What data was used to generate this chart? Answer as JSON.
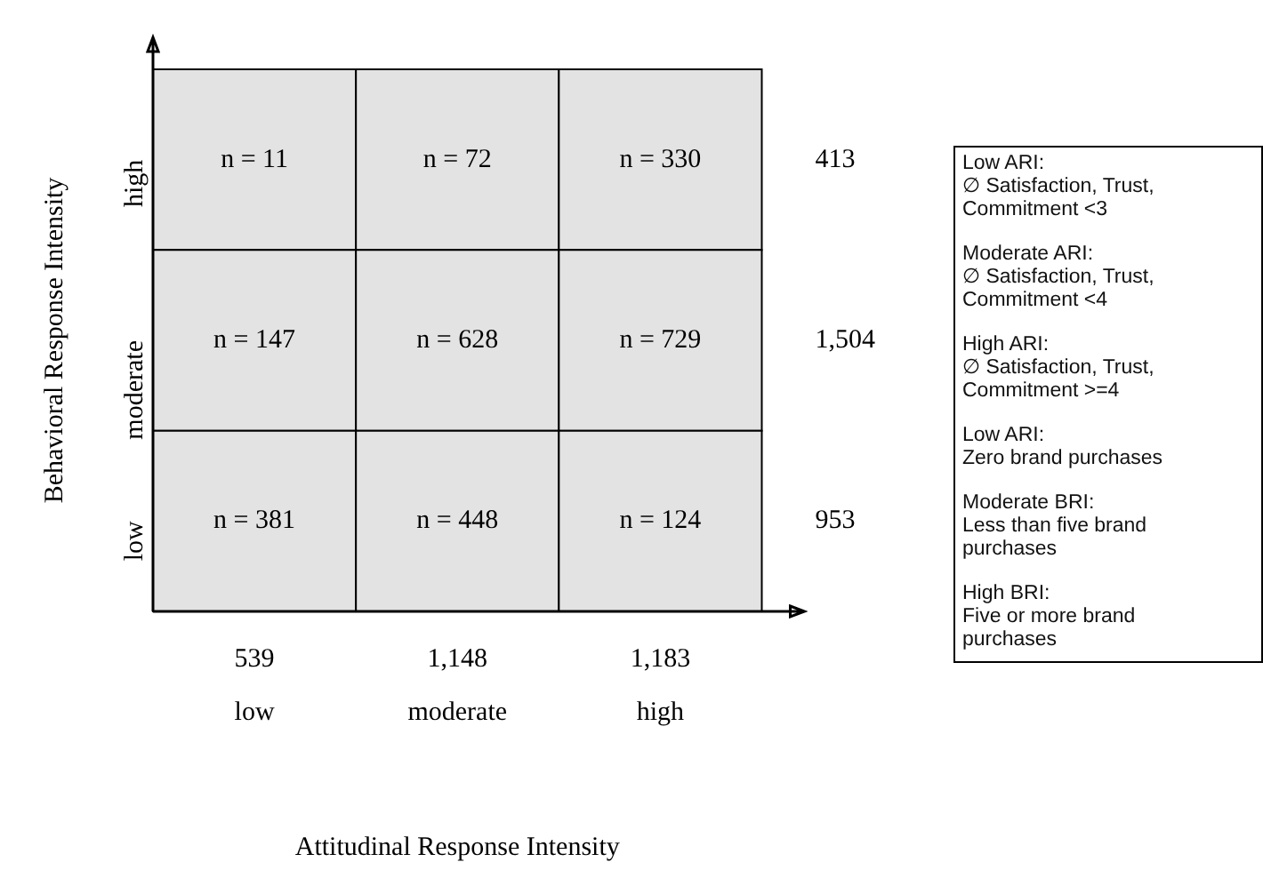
{
  "chart_data": {
    "type": "heatmap",
    "xlabel": "Attitudinal Response Intensity",
    "ylabel": "Behavioral Response Intensity",
    "categories": [
      "low",
      "moderate",
      "high"
    ],
    "y_categories": [
      "high",
      "moderate",
      "low"
    ],
    "y2_categories": [
      "413",
      "1,504",
      "953"
    ],
    "cells": [
      [
        11,
        72,
        330
      ],
      [
        147,
        628,
        729
      ],
      [
        381,
        448,
        124
      ]
    ],
    "cell_labels": [
      [
        "n = 11",
        "n = 72",
        "n = 330"
      ],
      [
        "n = 147",
        "n = 628",
        "n = 729"
      ],
      [
        "n = 381",
        "n = 448",
        "n = 124"
      ]
    ],
    "color": "#e3e3e3",
    "grid": false,
    "annotations": [
      "539",
      "1,148",
      "1,183",
      "Low ARI:\n∅ Satisfaction, Trust,\nCommitment <3",
      "Moderate ARI:\n∅ Satisfaction, Trust,\nCommitment <4",
      "High ARI:\n∅ Satisfaction, Trust,\nCommitment >=4",
      "Low ARI:\nZero brand purchases",
      "Moderate BRI:\nLess than five brand\npurchases",
      "High BRI:\nFive or more brand\npurchases"
    ]
  }
}
